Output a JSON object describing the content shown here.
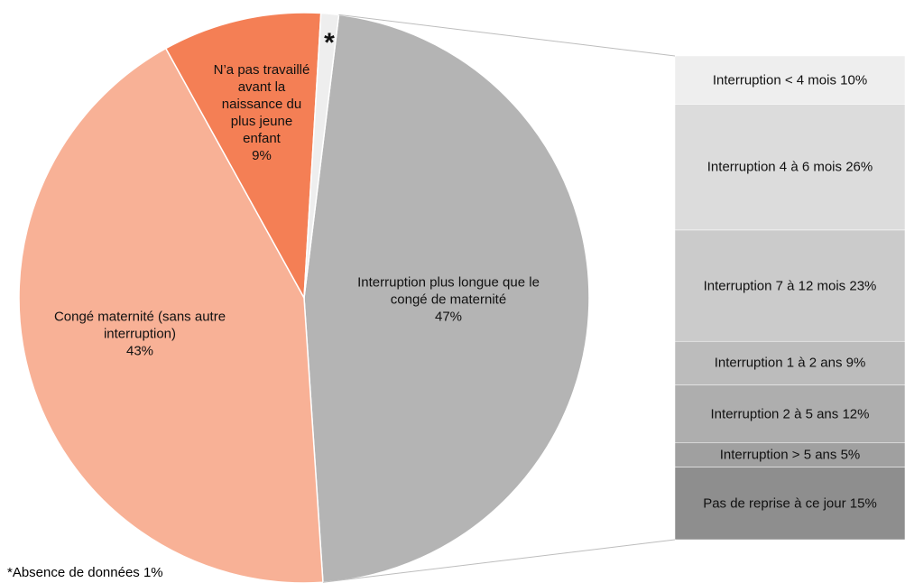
{
  "chart_data": {
    "type": "pie",
    "pie": {
      "categories": [
        "Interruption plus longue que le congé de maternité",
        "Congé maternité (sans autre interruption)",
        "N’a pas travaillé avant la naissance du plus jeune enfant",
        "*"
      ],
      "values": [
        47,
        43,
        9,
        1
      ],
      "value_labels": [
        "47%",
        "43%",
        "9%",
        null
      ],
      "colors": [
        "#b4b4b4",
        "#f8b196",
        "#f47f55",
        "#eeeeee"
      ]
    },
    "bar": {
      "categories": [
        "Interruption < 4 mois",
        "Interruption 4 à 6 mois",
        "Interruption 7 à 12 mois",
        "Interruption 1 à 2 ans",
        "Interruption 2 à 5 ans",
        "Interruption > 5 ans",
        "Pas de reprise à ce jour"
      ],
      "values": [
        10,
        26,
        23,
        9,
        12,
        5,
        15
      ],
      "value_labels": [
        "10%",
        "26%",
        "23%",
        "9%",
        "12%",
        "5%",
        "15%"
      ],
      "colors": [
        "#eeeeee",
        "#dcdcdc",
        "#cbcbcb",
        "#bcbcbc",
        "#aeaeae",
        "#a0a0a0",
        "#8e8e8e"
      ]
    },
    "footnote": "*Absence de données 1%"
  }
}
